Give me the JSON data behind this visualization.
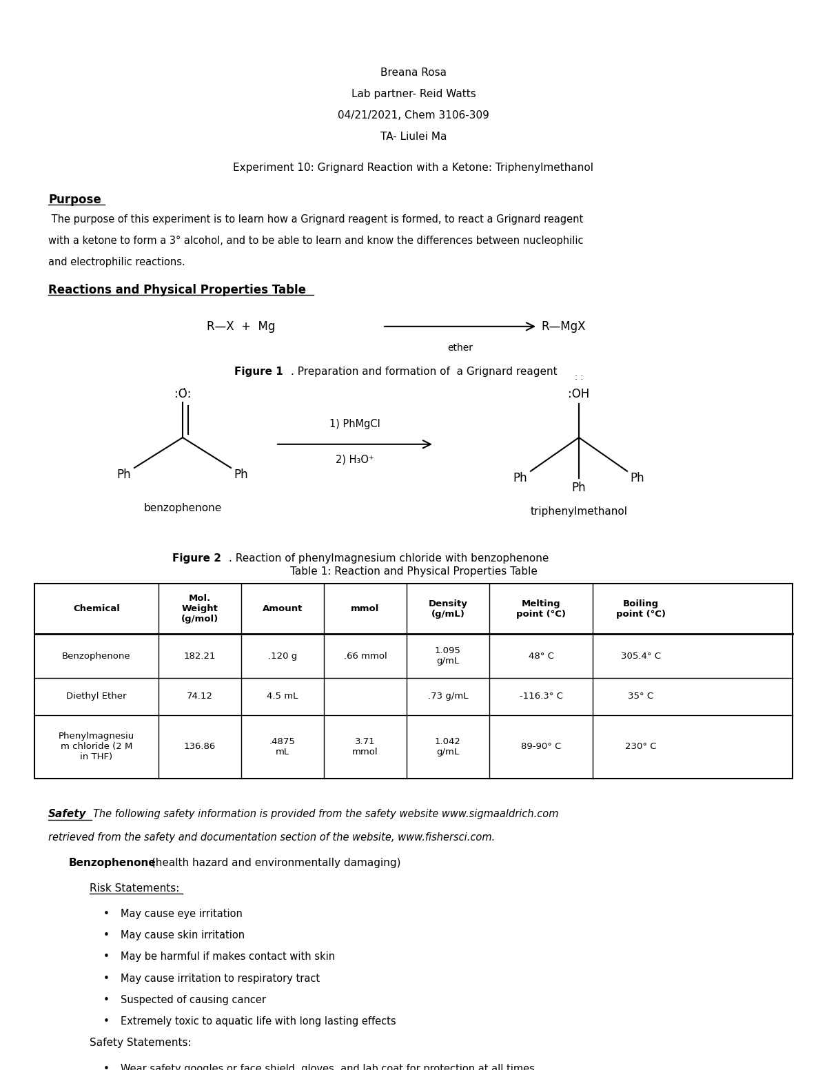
{
  "background_color": "#ffffff",
  "header_lines": [
    "Breana Rosa",
    "Lab partner- Reid Watts",
    "04/21/2021, Chem 3106-309",
    "TA- Liulei Ma"
  ],
  "title_line": "Experiment 10: Grignard Reaction with a Ketone: Triphenylmethanol",
  "purpose_heading": "Purpose",
  "purpose_text": " The purpose of this experiment is to learn how a Grignard reagent is formed, to react a Grignard reagent\nwith a ketone to form a 3° alcohol, and to be able to learn and know the differences between nucleophilic\nand electrophilic reactions.",
  "section_heading": "Reactions and Physical Properties Table",
  "table_title": "Table 1: Reaction and Physical Properties Table",
  "table_headers": [
    "Chemical",
    "Mol.\nWeight\n(g/mol)",
    "Amount",
    "mmol",
    "Density\n(g/mL)",
    "Melting\npoint (°C)",
    "Boiling\npoint (°C)"
  ],
  "table_rows": [
    [
      "Benzophenone",
      "182.21",
      ".120 g",
      ".66 mmol",
      "1.095\ng/mL",
      "48° C",
      "305.4° C"
    ],
    [
      "Diethyl Ether",
      "74.12",
      "4.5 mL",
      "",
      ".73 g/mL",
      "-116.3° C",
      "35° C"
    ],
    [
      "Phenylmagnesiu\nm chloride (2 M\nin THF)",
      "136.86",
      ".4875\nmL",
      "3.71\nmmol",
      "1.042\ng/mL",
      "89-90° C",
      "230° C"
    ]
  ],
  "gray_cell": [
    1,
    3
  ],
  "safety_italic_text": "The following safety information is provided from the safety website www.sigmaaldrich.com\nretrieved from the safety and documentation section of the website, www.fishersci.com.",
  "benzophenone_bold": "Benzophenone",
  "benzophenone_rest": " (health hazard and environmentally damaging)",
  "risk_heading": "Risk Statements:",
  "risk_bullets": [
    "May cause eye irritation",
    "May cause skin irritation",
    "May be harmful if makes contact with skin",
    "May cause irritation to respiratory tract",
    "Suspected of causing cancer",
    "Extremely toxic to aquatic life with long lasting effects"
  ],
  "safety_heading": "Safety Statements:",
  "safety_bullets": [
    "Wear safety googles or face shield, gloves, and lab coat for protection at all times"
  ]
}
